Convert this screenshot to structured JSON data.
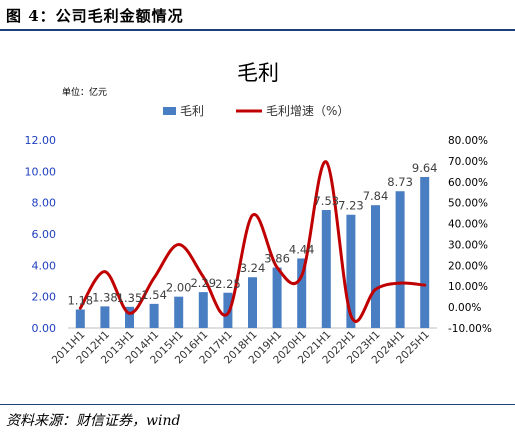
{
  "figure": {
    "title": "图 4：公司毛利金额情况",
    "source": "资料来源：财信证券，wind"
  },
  "chart_data": {
    "type": "bar",
    "title": "毛利",
    "unit_label": "单位：亿元",
    "legend_position": "top",
    "categories": [
      "2011H1",
      "2012H1",
      "2013H1",
      "2014H1",
      "2015H1",
      "2016H1",
      "2017H1",
      "2018H1",
      "2019H1",
      "2020H1",
      "2021H1",
      "2022H1",
      "2023H1",
      "2024H1",
      "2025H1"
    ],
    "series": [
      {
        "name": "毛利",
        "type": "bar",
        "axis": "left",
        "color": "#4a7ec2",
        "values": [
          1.18,
          1.38,
          1.35,
          1.54,
          2.0,
          2.29,
          2.25,
          3.24,
          3.86,
          4.44,
          7.53,
          7.23,
          7.84,
          8.73,
          9.64
        ],
        "labels": [
          "1.18",
          "1.38",
          "1.35",
          "1.54",
          "2.00",
          "2.29",
          "2.25",
          "3.24",
          "3.86",
          "4.44",
          "7.53",
          "7.23",
          "7.84",
          "8.73",
          "9.64"
        ]
      },
      {
        "name": "毛利增速（%）",
        "type": "line",
        "axis": "right",
        "color": "#c00000",
        "values": [
          -0.5,
          17.0,
          -3.0,
          14.0,
          30.0,
          14.5,
          -3.0,
          44.0,
          19.0,
          15.0,
          69.5,
          -4.0,
          8.5,
          11.5,
          10.5
        ]
      }
    ],
    "y_left": {
      "min": 0,
      "max": 12,
      "ticks": [
        0,
        2,
        4,
        6,
        8,
        10,
        12
      ],
      "tick_labels": [
        "0.00",
        "2.00",
        "4.00",
        "6.00",
        "8.00",
        "10.00",
        "12.00"
      ]
    },
    "y_right": {
      "min": -10,
      "max": 80,
      "ticks": [
        -10,
        0,
        10,
        20,
        30,
        40,
        50,
        60,
        70,
        80
      ],
      "tick_labels": [
        "-10.00%",
        "0.00%",
        "10.00%",
        "20.00%",
        "30.00%",
        "40.00%",
        "50.00%",
        "60.00%",
        "70.00%",
        "80.00%"
      ]
    },
    "grid": false
  }
}
